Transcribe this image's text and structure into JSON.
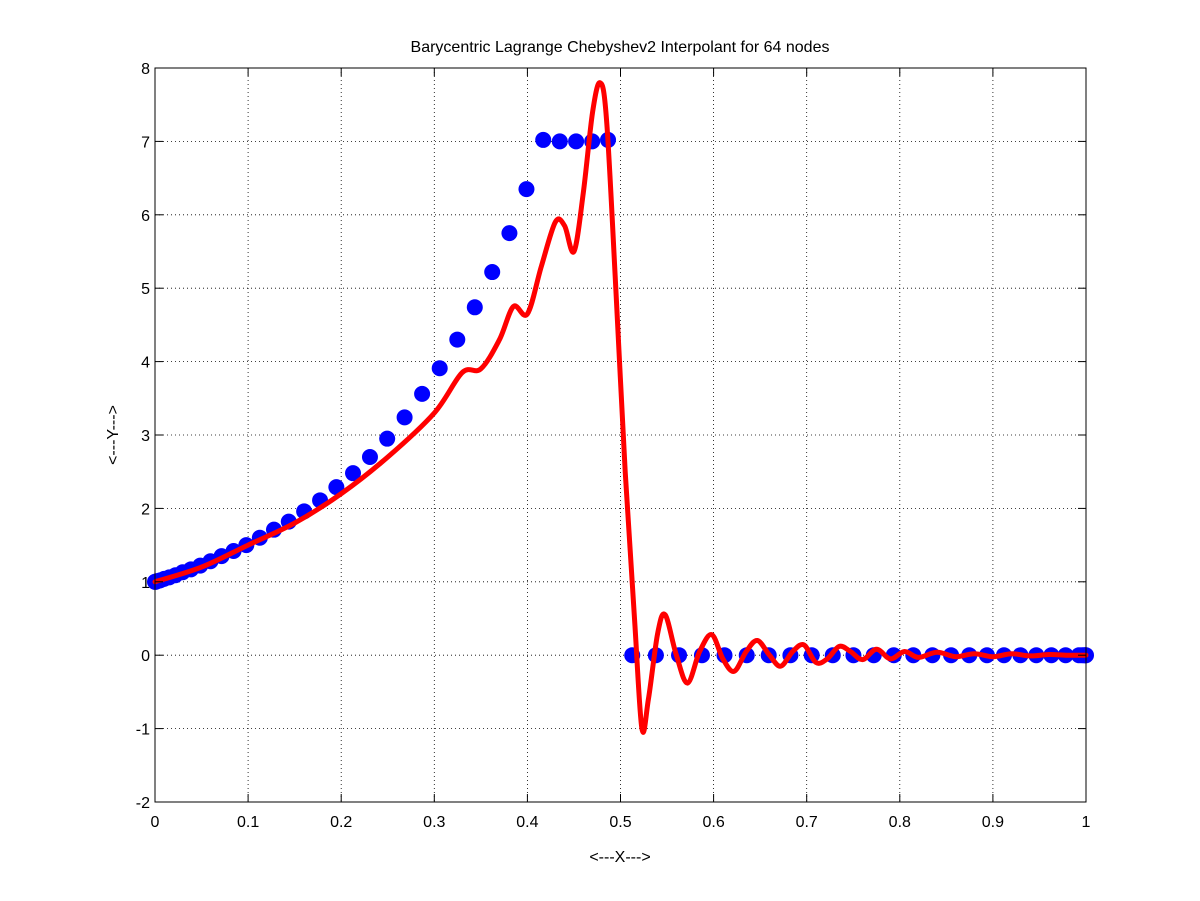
{
  "chart_data": {
    "type": "scatter",
    "title": "Barycentric Lagrange Chebyshev2 Interpolant for 64 nodes",
    "xlabel": "<---X--->",
    "ylabel": "<---Y--->",
    "xlim": [
      0,
      1
    ],
    "ylim": [
      -2,
      8
    ],
    "xticks": [
      "0",
      "0.1",
      "0.2",
      "0.3",
      "0.4",
      "0.5",
      "0.6",
      "0.7",
      "0.8",
      "0.9",
      "1"
    ],
    "yticks": [
      "-2",
      "-1",
      "0",
      "1",
      "2",
      "3",
      "4",
      "5",
      "6",
      "7",
      "8"
    ],
    "grid": true,
    "series": [
      {
        "kind": "markers",
        "color": "#0000ff",
        "x": [
          0,
          0.0006,
          0.0025,
          0.0055,
          0.0098,
          0.0153,
          0.022,
          0.0297,
          0.0386,
          0.0486,
          0.0596,
          0.0715,
          0.0844,
          0.0981,
          0.1126,
          0.1278,
          0.1437,
          0.1602,
          0.1773,
          0.1948,
          0.2127,
          0.2309,
          0.2494,
          0.2681,
          0.2869,
          0.3058,
          0.3247,
          0.3435,
          0.3622,
          0.3807,
          0.399,
          0.417,
          0.4348,
          0.4523,
          0.4696,
          0.4866,
          0.5126,
          0.538,
          0.5629,
          0.5875,
          0.6117,
          0.6356,
          0.6592,
          0.6825,
          0.7054,
          0.728,
          0.7502,
          0.772,
          0.7935,
          0.8145,
          0.835,
          0.8551,
          0.8746,
          0.8936,
          0.9119,
          0.9296,
          0.9466,
          0.9628,
          0.9781,
          0.9924,
          0.9956,
          0.9979,
          0.9994,
          1
        ],
        "y": [
          1.0,
          1.0,
          1.01,
          1.02,
          1.04,
          1.06,
          1.09,
          1.13,
          1.17,
          1.22,
          1.28,
          1.35,
          1.42,
          1.5,
          1.6,
          1.71,
          1.82,
          1.96,
          2.11,
          2.29,
          2.48,
          2.7,
          2.95,
          3.24,
          3.56,
          3.91,
          4.3,
          4.74,
          5.22,
          5.75,
          6.35,
          7.02,
          7.0,
          7.0,
          7.0,
          7.02,
          0,
          0,
          0,
          0,
          0,
          0,
          0,
          0,
          0,
          0,
          0,
          0,
          0,
          0,
          0,
          0,
          0,
          0,
          0,
          0,
          0,
          0,
          0,
          0,
          0,
          0,
          0,
          0
        ]
      },
      {
        "kind": "line",
        "color": "#ff0000",
        "x": [
          0,
          0.05,
          0.1,
          0.15,
          0.2,
          0.25,
          0.3,
          0.33,
          0.35,
          0.37,
          0.385,
          0.4,
          0.415,
          0.43,
          0.44,
          0.45,
          0.46,
          0.47,
          0.478,
          0.485,
          0.495,
          0.505,
          0.515,
          0.523,
          0.53,
          0.54,
          0.548,
          0.56,
          0.572,
          0.585,
          0.598,
          0.61,
          0.622,
          0.635,
          0.647,
          0.66,
          0.672,
          0.685,
          0.697,
          0.71,
          0.722,
          0.735,
          0.747,
          0.76,
          0.775,
          0.79,
          0.805,
          0.82,
          0.84,
          0.86,
          0.88,
          0.9,
          0.92,
          0.94,
          0.96,
          0.98,
          1
        ],
        "y": [
          1.0,
          1.2,
          1.5,
          1.8,
          2.2,
          2.7,
          3.3,
          3.85,
          3.9,
          4.3,
          4.75,
          4.65,
          5.3,
          5.9,
          5.85,
          5.5,
          6.3,
          7.4,
          7.8,
          7.3,
          5.0,
          2.5,
          0.5,
          -1.0,
          -0.6,
          0.3,
          0.55,
          0.0,
          -0.38,
          0.05,
          0.28,
          -0.05,
          -0.22,
          0.05,
          0.2,
          0.0,
          -0.15,
          0.05,
          0.14,
          -0.1,
          -0.05,
          0.12,
          0.05,
          -0.06,
          0.08,
          -0.05,
          0.05,
          -0.03,
          0.04,
          -0.02,
          0.02,
          -0.02,
          0.02,
          -0.01,
          0.01,
          0.0,
          0.0
        ]
      }
    ]
  }
}
